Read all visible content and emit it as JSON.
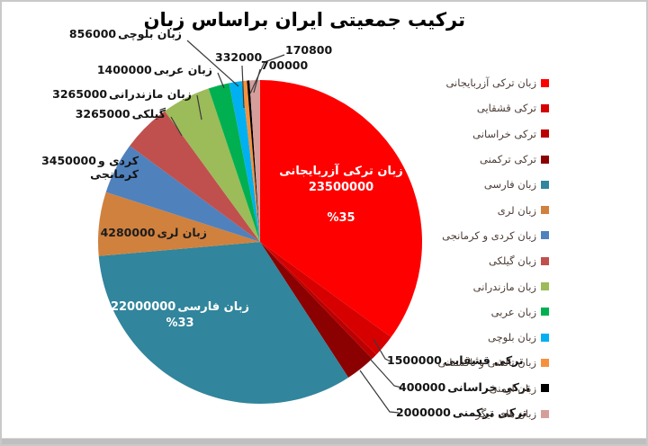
{
  "title": "ترکیب جمعیتی ایران براساس زبان",
  "chart_data": {
    "type": "pie",
    "title": "ترکیب جمعیتی ایران براساس زبان",
    "legend_position": "right",
    "total": 67118800,
    "start_angle_deg": 0,
    "direction": "clockwise",
    "slices": [
      {
        "label": "زبان ترکی آزربایجانی",
        "value": 23500000,
        "percent_label": "%35",
        "color": "#fe0000"
      },
      {
        "label": "ترکی قشقایی",
        "value": 1500000,
        "color": "#d60000"
      },
      {
        "label": "ترکی خراسانی",
        "value": 400000,
        "color": "#bc0000"
      },
      {
        "label": "ترکی ترکمنی",
        "value": 2000000,
        "color": "#8b0000"
      },
      {
        "label": "زبان فارسی",
        "value": 22000000,
        "percent_label": "%33",
        "color": "#31859c"
      },
      {
        "label": "زبان لری",
        "value": 4280000,
        "color": "#d0813e"
      },
      {
        "label": "زبان کردی و کرمانجی",
        "value": 3450000,
        "color": "#4f81bd"
      },
      {
        "label": "زبان گیلکی",
        "value": 3265000,
        "color": "#c0504d"
      },
      {
        "label": "زبان مازندرانی",
        "value": 3265000,
        "color": "#9cbb59"
      },
      {
        "label": "زبان عربی",
        "value": 1400000,
        "color": "#00b050"
      },
      {
        "label": "زبان بلوچی",
        "value": 856000,
        "color": "#00b0f0"
      },
      {
        "label": "زبان تالشی و تاکستانی",
        "value": 332000,
        "color": "#f5913e"
      },
      {
        "label": "زبان ارمنی",
        "value": 170800,
        "color": "#000000"
      },
      {
        "label": "زبان های دیگر",
        "value": 700000,
        "color": "#d59e9b"
      }
    ]
  },
  "callouts": {
    "balochi": {
      "name": "زبان بلوچی",
      "value": "856000"
    },
    "arabic": {
      "name": "زبان عربی",
      "value": "1400000"
    },
    "mazandarani": {
      "name": "زبان مازندرانی",
      "value": "3265000"
    },
    "gilaki": {
      "name": "گیلکی",
      "value": "3265000"
    },
    "kurdish": {
      "name": "کردی و",
      "value": "3450000",
      "name_line2": "کرمانجی"
    },
    "luri": {
      "name": "زبان لری",
      "value": "4280000"
    },
    "talysh": {
      "value": "332000"
    },
    "armenian": {
      "value": "170800"
    },
    "other": {
      "value": "700000"
    },
    "qashqai": {
      "name": "ترکی قشقایی",
      "value": "1500000"
    },
    "khorasani": {
      "name": "ترکی خراسانی",
      "value": "400000"
    },
    "turkmen": {
      "name": "ترکی ترکمنی",
      "value": "2000000"
    }
  },
  "in_labels": {
    "azerbaijani": {
      "name": "زبان ترکی آزربایجانی",
      "value": "23500000",
      "pct": "%35"
    },
    "persian": {
      "name": "زبان فارسی",
      "value": "22000000",
      "pct": "%33"
    }
  }
}
